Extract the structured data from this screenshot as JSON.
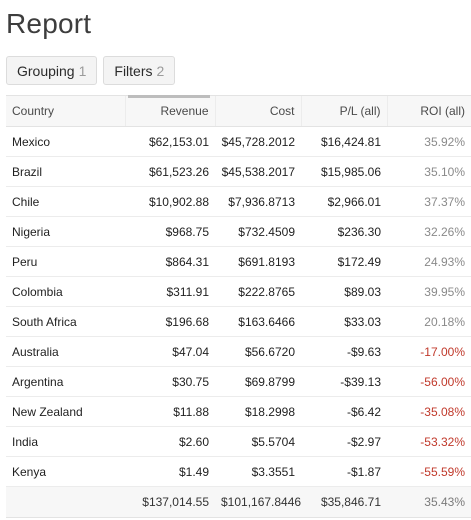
{
  "page": {
    "title": "Report"
  },
  "toolbar": {
    "grouping": {
      "label": "Grouping",
      "count": "1"
    },
    "filters": {
      "label": "Filters",
      "count": "2"
    }
  },
  "table": {
    "headers": {
      "country": "Country",
      "revenue": "Revenue",
      "cost": "Cost",
      "pl": "P/L (all)",
      "roi": "ROI (all)"
    },
    "rows": [
      {
        "country": "Mexico",
        "revenue": "$62,153.01",
        "cost": "$45,728.2012",
        "pl": "$16,424.81",
        "roi": "35.92%",
        "roi_negative": false
      },
      {
        "country": "Brazil",
        "revenue": "$61,523.26",
        "cost": "$45,538.2017",
        "pl": "$15,985.06",
        "roi": "35.10%",
        "roi_negative": false
      },
      {
        "country": "Chile",
        "revenue": "$10,902.88",
        "cost": "$7,936.8713",
        "pl": "$2,966.01",
        "roi": "37.37%",
        "roi_negative": false
      },
      {
        "country": "Nigeria",
        "revenue": "$968.75",
        "cost": "$732.4509",
        "pl": "$236.30",
        "roi": "32.26%",
        "roi_negative": false
      },
      {
        "country": "Peru",
        "revenue": "$864.31",
        "cost": "$691.8193",
        "pl": "$172.49",
        "roi": "24.93%",
        "roi_negative": false
      },
      {
        "country": "Colombia",
        "revenue": "$311.91",
        "cost": "$222.8765",
        "pl": "$89.03",
        "roi": "39.95%",
        "roi_negative": false
      },
      {
        "country": "South Africa",
        "revenue": "$196.68",
        "cost": "$163.6466",
        "pl": "$33.03",
        "roi": "20.18%",
        "roi_negative": false
      },
      {
        "country": "Australia",
        "revenue": "$47.04",
        "cost": "$56.6720",
        "pl": "-$9.63",
        "roi": "-17.00%",
        "roi_negative": true
      },
      {
        "country": "Argentina",
        "revenue": "$30.75",
        "cost": "$69.8799",
        "pl": "-$39.13",
        "roi": "-56.00%",
        "roi_negative": true
      },
      {
        "country": "New Zealand",
        "revenue": "$11.88",
        "cost": "$18.2998",
        "pl": "-$6.42",
        "roi": "-35.08%",
        "roi_negative": true
      },
      {
        "country": "India",
        "revenue": "$2.60",
        "cost": "$5.5704",
        "pl": "-$2.97",
        "roi": "-53.32%",
        "roi_negative": true
      },
      {
        "country": "Kenya",
        "revenue": "$1.49",
        "cost": "$3.3551",
        "pl": "-$1.87",
        "roi": "-55.59%",
        "roi_negative": true
      }
    ],
    "totals": {
      "revenue": "$137,014.55",
      "cost": "$101,167.8446",
      "pl": "$35,846.71",
      "roi": "35.43%"
    }
  },
  "colors": {
    "negative": "#c0392b",
    "muted": "#8a8a8a",
    "header_bg": "#f7f7f7"
  }
}
